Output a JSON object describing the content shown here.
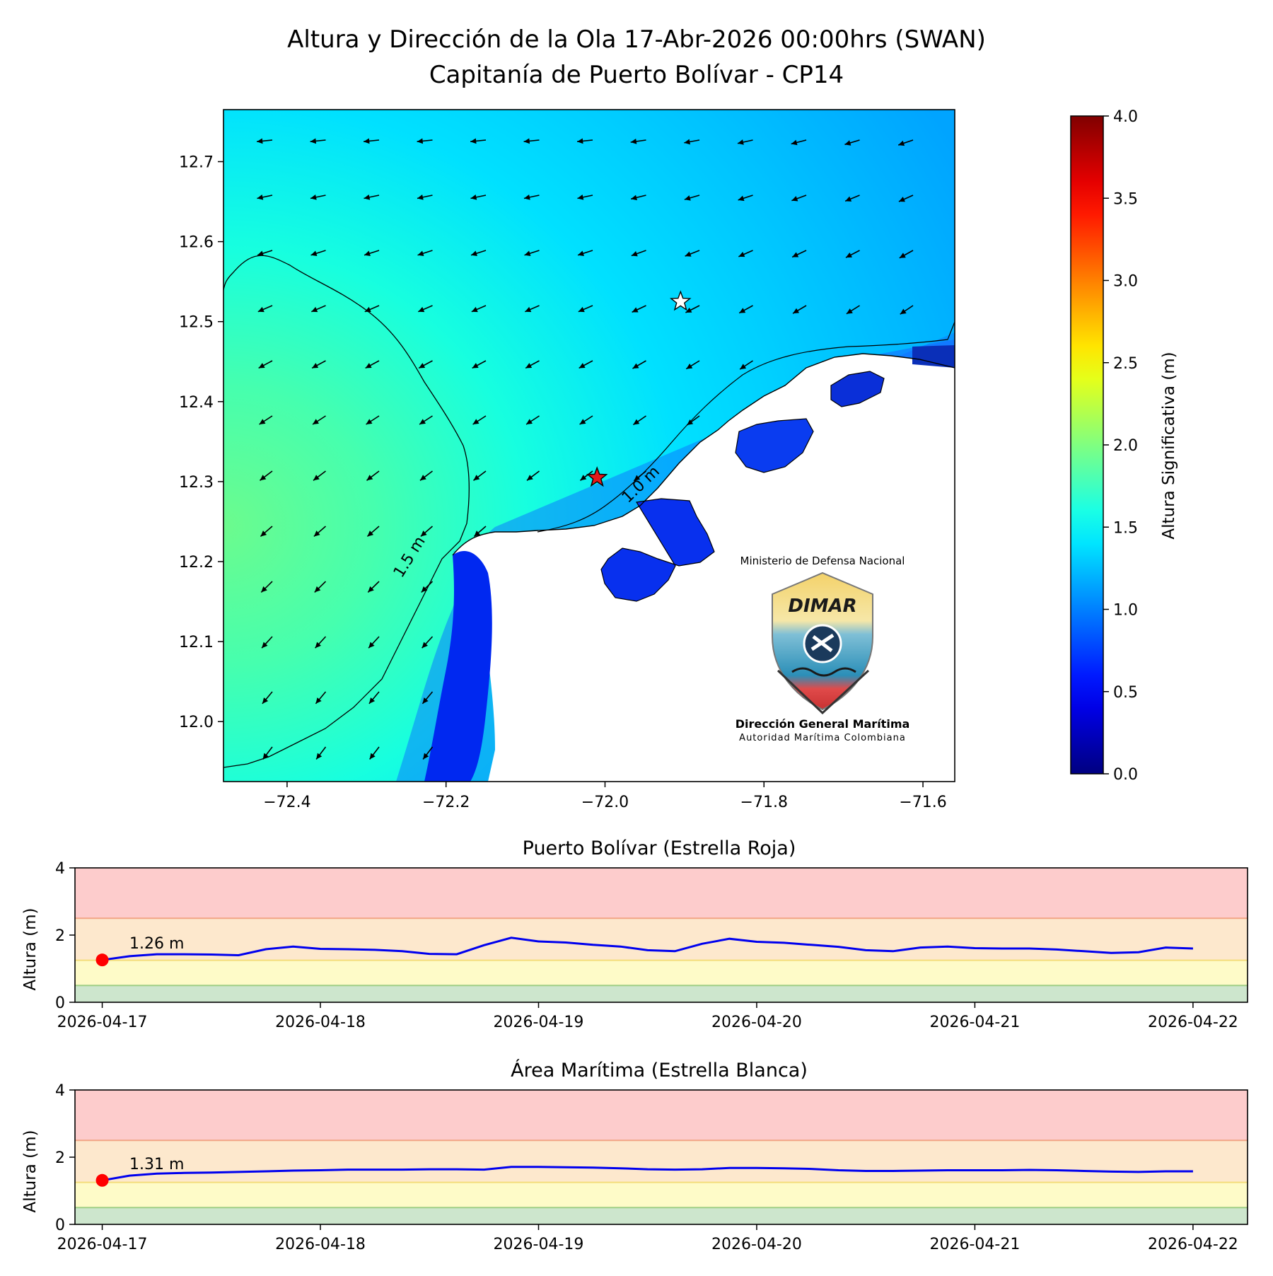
{
  "figure": {
    "title_line1": "Altura y Dirección de la Ola 17-Abr-2026 00:00hrs (SWAN)",
    "title_line2": "Capitanía de Puerto Bolívar - CP14"
  },
  "map": {
    "x_ticks": [
      "−72.4",
      "−72.2",
      "−72.0",
      "−71.8",
      "−71.6"
    ],
    "x_tick_values": [
      -72.4,
      -72.2,
      -72.0,
      -71.8,
      -71.6
    ],
    "y_ticks": [
      "12.0",
      "12.1",
      "12.2",
      "12.3",
      "12.4",
      "12.5",
      "12.6",
      "12.7"
    ],
    "y_tick_values": [
      12.0,
      12.1,
      12.2,
      12.3,
      12.4,
      12.5,
      12.6,
      12.7
    ],
    "lon_range": [
      -72.48,
      -71.56
    ],
    "lat_range": [
      11.925,
      12.765
    ],
    "contour_labels": [
      "1.5 m",
      "1.0 m"
    ],
    "red_star": {
      "lon": -72.01,
      "lat": 12.305,
      "color": "#e41a1c"
    },
    "white_star": {
      "lon": -71.905,
      "lat": 12.525,
      "color": "#ffffff"
    },
    "logo": {
      "ministry": "Ministerio de Defensa Nacional",
      "brand": "DIMAR",
      "org_name": "Dirección General Marítima",
      "org_tagline": "Autoridad Marítima Colombiana"
    }
  },
  "colorbar": {
    "label": "Altura Significativa (m)",
    "ticks": [
      "0.0",
      "0.5",
      "1.0",
      "1.5",
      "2.0",
      "2.5",
      "3.0",
      "3.5",
      "4.0"
    ],
    "tick_values": [
      0,
      0.5,
      1,
      1.5,
      2,
      2.5,
      3,
      3.5,
      4
    ],
    "range": [
      0,
      4
    ],
    "colormap": "jet"
  },
  "chart_data": [
    {
      "type": "line",
      "title": "Puerto Bolívar (Estrella Roja)",
      "ylabel": "Altura (m)",
      "ylim": [
        0,
        4
      ],
      "y_ticks": [
        "0",
        "2",
        "4"
      ],
      "x_ticks": [
        "2026-04-17",
        "2026-04-18",
        "2026-04-19",
        "2026-04-20",
        "2026-04-21",
        "2026-04-22"
      ],
      "x_range": [
        "2026-04-16T21:00",
        "2026-04-22T06:00"
      ],
      "current_label": "1.26 m",
      "current_value": 1.26,
      "line_color": "#0000ee",
      "marker_color": "#ff0000",
      "bands": [
        {
          "from": 0,
          "to": 0.5,
          "color": "#cde6cd"
        },
        {
          "from": 0.5,
          "to": 1.25,
          "color": "#fefbc8"
        },
        {
          "from": 1.25,
          "to": 2.5,
          "color": "#fde8cd"
        },
        {
          "from": 2.5,
          "to": 4,
          "color": "#fdcccc"
        }
      ],
      "series": [
        {
          "x": [
            "2026-04-17T00:00",
            "2026-04-17T03:00",
            "2026-04-17T06:00",
            "2026-04-17T09:00",
            "2026-04-17T12:00",
            "2026-04-17T15:00",
            "2026-04-17T18:00",
            "2026-04-17T21:00",
            "2026-04-18T00:00",
            "2026-04-18T03:00",
            "2026-04-18T06:00",
            "2026-04-18T09:00",
            "2026-04-18T12:00",
            "2026-04-18T15:00",
            "2026-04-18T18:00",
            "2026-04-18T21:00",
            "2026-04-19T00:00",
            "2026-04-19T03:00",
            "2026-04-19T06:00",
            "2026-04-19T09:00",
            "2026-04-19T12:00",
            "2026-04-19T15:00",
            "2026-04-19T18:00",
            "2026-04-19T21:00",
            "2026-04-20T00:00",
            "2026-04-20T03:00",
            "2026-04-20T06:00",
            "2026-04-20T09:00",
            "2026-04-20T12:00",
            "2026-04-20T15:00",
            "2026-04-20T18:00",
            "2026-04-20T21:00",
            "2026-04-21T00:00",
            "2026-04-21T03:00",
            "2026-04-21T06:00",
            "2026-04-21T09:00",
            "2026-04-21T12:00",
            "2026-04-21T15:00",
            "2026-04-21T18:00",
            "2026-04-21T21:00",
            "2026-04-22T00:00"
          ],
          "values": [
            1.26,
            1.37,
            1.43,
            1.43,
            1.42,
            1.4,
            1.58,
            1.66,
            1.59,
            1.58,
            1.56,
            1.52,
            1.44,
            1.43,
            1.7,
            1.92,
            1.81,
            1.78,
            1.71,
            1.66,
            1.55,
            1.52,
            1.74,
            1.89,
            1.8,
            1.77,
            1.71,
            1.65,
            1.55,
            1.52,
            1.63,
            1.66,
            1.61,
            1.6,
            1.6,
            1.57,
            1.52,
            1.47,
            1.49,
            1.63,
            1.6
          ]
        }
      ]
    },
    {
      "type": "line",
      "title": "Área Marítima (Estrella Blanca)",
      "ylabel": "Altura (m)",
      "ylim": [
        0,
        4
      ],
      "y_ticks": [
        "0",
        "2",
        "4"
      ],
      "x_ticks": [
        "2026-04-17",
        "2026-04-18",
        "2026-04-19",
        "2026-04-20",
        "2026-04-21",
        "2026-04-22"
      ],
      "x_range": [
        "2026-04-16T21:00",
        "2026-04-22T06:00"
      ],
      "current_label": "1.31 m",
      "current_value": 1.31,
      "line_color": "#0000ee",
      "marker_color": "#ff0000",
      "bands": [
        {
          "from": 0,
          "to": 0.5,
          "color": "#cde6cd"
        },
        {
          "from": 0.5,
          "to": 1.25,
          "color": "#fefbc8"
        },
        {
          "from": 1.25,
          "to": 2.5,
          "color": "#fde8cd"
        },
        {
          "from": 2.5,
          "to": 4,
          "color": "#fdcccc"
        }
      ],
      "series": [
        {
          "x": [
            "2026-04-17T00:00",
            "2026-04-17T03:00",
            "2026-04-17T06:00",
            "2026-04-17T09:00",
            "2026-04-17T12:00",
            "2026-04-17T15:00",
            "2026-04-17T18:00",
            "2026-04-17T21:00",
            "2026-04-18T00:00",
            "2026-04-18T03:00",
            "2026-04-18T06:00",
            "2026-04-18T09:00",
            "2026-04-18T12:00",
            "2026-04-18T15:00",
            "2026-04-18T18:00",
            "2026-04-18T21:00",
            "2026-04-19T00:00",
            "2026-04-19T03:00",
            "2026-04-19T06:00",
            "2026-04-19T09:00",
            "2026-04-19T12:00",
            "2026-04-19T15:00",
            "2026-04-19T18:00",
            "2026-04-19T21:00",
            "2026-04-20T00:00",
            "2026-04-20T03:00",
            "2026-04-20T06:00",
            "2026-04-20T09:00",
            "2026-04-20T12:00",
            "2026-04-20T15:00",
            "2026-04-20T18:00",
            "2026-04-20T21:00",
            "2026-04-21T00:00",
            "2026-04-21T03:00",
            "2026-04-21T06:00",
            "2026-04-21T09:00",
            "2026-04-21T12:00",
            "2026-04-21T15:00",
            "2026-04-21T18:00",
            "2026-04-21T21:00",
            "2026-04-22T00:00"
          ],
          "values": [
            1.31,
            1.45,
            1.51,
            1.53,
            1.54,
            1.56,
            1.58,
            1.6,
            1.61,
            1.63,
            1.63,
            1.63,
            1.64,
            1.64,
            1.63,
            1.71,
            1.71,
            1.7,
            1.69,
            1.67,
            1.64,
            1.63,
            1.64,
            1.68,
            1.68,
            1.67,
            1.65,
            1.61,
            1.59,
            1.59,
            1.6,
            1.61,
            1.61,
            1.61,
            1.62,
            1.61,
            1.59,
            1.57,
            1.56,
            1.58,
            1.58
          ]
        }
      ]
    }
  ]
}
